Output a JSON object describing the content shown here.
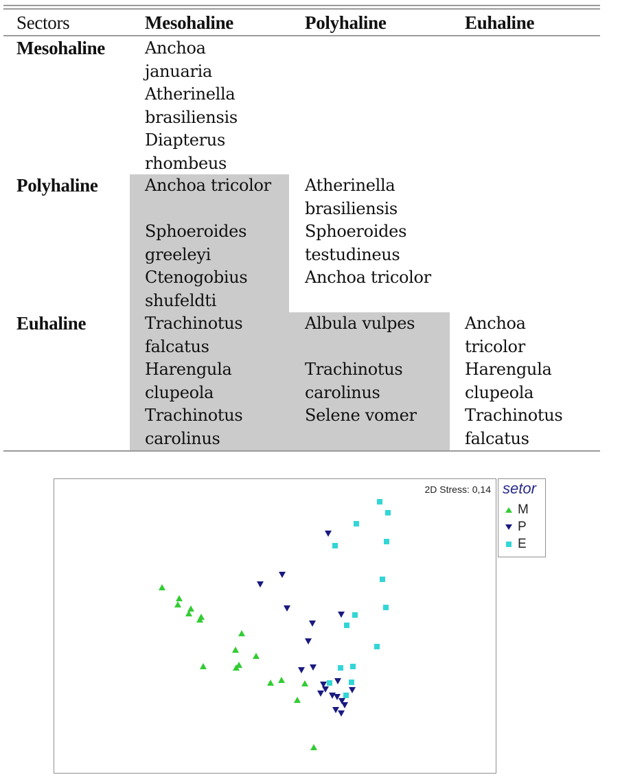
{
  "table": {
    "headers": [
      "Sectors",
      "Mesohaline",
      "Polyhaline",
      "Euhaline"
    ],
    "rows": [
      {
        "label": "Mesohaline",
        "cells": [
          "Anchoa\njanuaria\nAtherinella\nbrasiliensis\nDiapterus\nrhombeus",
          "",
          ""
        ]
      },
      {
        "label": "Polyhaline",
        "cells": [
          "Anchoa tricolor\n\nSphoeroides\ngreeleyi\nCtenogobius\nshufeldti",
          "Atherinella\nbrasiliensis\nSphoeroides\ntestudineus\nAnchoa tricolor",
          ""
        ]
      },
      {
        "label": "Euhaline",
        "cells": [
          "Trachinotus\nfalcatus\nHarengula\nclupeola\nTrachinotus\ncarolinus",
          "Albula vulpes\n\nTrachinotus\ncarolinus\nSelene vomer",
          "Anchoa\ntricolor\nHarengula\nclupeola\nTrachinotus\nfalcatus"
        ]
      }
    ],
    "shade_color": "#cbcbcb",
    "rule_color": "#9a9a9a"
  },
  "chart_data": {
    "type": "scatter",
    "title": "",
    "annotation": "2D Stress: 0,14",
    "xlabel": "",
    "ylabel": "",
    "xlim": [
      0,
      643
    ],
    "ylim": [
      0,
      428
    ],
    "grid": false,
    "legend": {
      "title": "setor",
      "position": "right-top-outside",
      "entries": [
        {
          "label": "M",
          "marker": "triangle-up",
          "color": "#33cc33"
        },
        {
          "label": "P",
          "marker": "triangle-down",
          "color": "#1a1a80"
        },
        {
          "label": "E",
          "marker": "square",
          "color": "#33d6d6"
        }
      ]
    },
    "series": [
      {
        "name": "M",
        "marker": "triangle-up",
        "color": "#33cc33",
        "points": [
          [
            157,
            158
          ],
          [
            182,
            174
          ],
          [
            180,
            183
          ],
          [
            199,
            189
          ],
          [
            196,
            196
          ],
          [
            214,
            201
          ],
          [
            212,
            205
          ],
          [
            273,
            225
          ],
          [
            264,
            249
          ],
          [
            294,
            258
          ],
          [
            217,
            273
          ],
          [
            269,
            271
          ],
          [
            265,
            275
          ],
          [
            331,
            293
          ],
          [
            315,
            297
          ],
          [
            365,
            298
          ],
          [
            354,
            322
          ],
          [
            378,
            391
          ]
        ]
      },
      {
        "name": "P",
        "marker": "triangle-down",
        "color": "#1a1a80",
        "points": [
          [
            399,
            79
          ],
          [
            332,
            139
          ],
          [
            300,
            153
          ],
          [
            339,
            188
          ],
          [
            418,
            197
          ],
          [
            376,
            210
          ],
          [
            370,
            236
          ],
          [
            360,
            278
          ],
          [
            377,
            274
          ],
          [
            392,
            299
          ],
          [
            395,
            306
          ],
          [
            388,
            312
          ],
          [
            413,
            294
          ],
          [
            434,
            307
          ],
          [
            405,
            315
          ],
          [
            412,
            317
          ],
          [
            419,
            323
          ],
          [
            423,
            329
          ],
          [
            410,
            336
          ],
          [
            418,
            341
          ]
        ]
      },
      {
        "name": "E",
        "marker": "square",
        "color": "#33d6d6",
        "points": [
          [
            474,
            33
          ],
          [
            486,
            49
          ],
          [
            440,
            65
          ],
          [
            409,
            97
          ],
          [
            484,
            91
          ],
          [
            478,
            146
          ],
          [
            483,
            187
          ],
          [
            438,
            198
          ],
          [
            426,
            213
          ],
          [
            470,
            244
          ],
          [
            417,
            275
          ],
          [
            435,
            273
          ],
          [
            401,
            297
          ],
          [
            433,
            296
          ],
          [
            425,
            315
          ]
        ]
      }
    ]
  }
}
